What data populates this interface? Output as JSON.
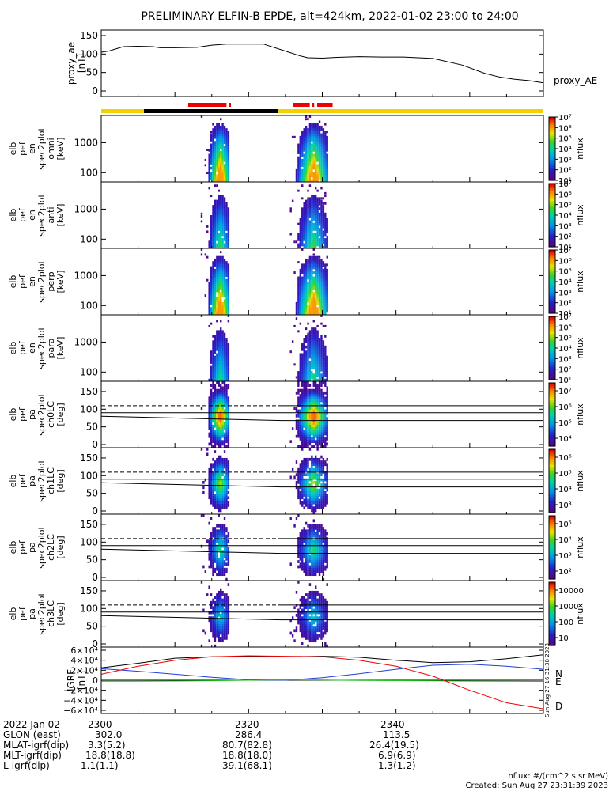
{
  "title": "PRELIMINARY ELFIN-B EPDE, alt=424km, 2022-01-02 23:00 to 24:00",
  "colors": {
    "red": "#ee0000",
    "black": "#000000",
    "yellow": "#f5d000",
    "blue": "#1f3fd6",
    "green": "#1fbf1f"
  },
  "chart_data": [
    {
      "id": "proxy_ae",
      "type": "line",
      "ylabel_lines": [
        "proxy_ae",
        "[nT]"
      ],
      "ylim": [
        0,
        150
      ],
      "yticks": [
        "0",
        "50",
        "100",
        "150"
      ],
      "legend": "proxy_AE",
      "x_minutes": [
        0,
        1,
        3,
        5,
        7,
        8,
        10,
        13,
        15,
        17,
        19,
        22,
        25,
        27,
        28,
        30,
        32,
        35,
        38,
        41,
        45,
        49,
        52,
        54,
        56,
        58,
        60
      ],
      "values": [
        105,
        108,
        120,
        121,
        120,
        117,
        117,
        118,
        124,
        127,
        127,
        127,
        108,
        95,
        90,
        89,
        91,
        93,
        92,
        92,
        88,
        70,
        48,
        38,
        32,
        28,
        22
      ]
    },
    {
      "id": "science_zones",
      "type": "bar",
      "legend_note": "science collection bars",
      "segments": [
        {
          "color": "red",
          "start_min": 11.8,
          "end_min": 17.0
        },
        {
          "color": "red",
          "start_min": 17.3,
          "end_min": 17.6
        },
        {
          "color": "red",
          "start_min": 26.0,
          "end_min": 28.3
        },
        {
          "color": "red",
          "start_min": 28.6,
          "end_min": 28.9
        },
        {
          "color": "red",
          "start_min": 29.3,
          "end_min": 31.4
        },
        {
          "color": "black",
          "start_min": 5.8,
          "end_min": 24.0
        }
      ]
    },
    {
      "id": "spec_omni",
      "type": "heatmap",
      "ylabel_lines": [
        "elb",
        "pef",
        "en",
        "spec2plot",
        "omni",
        "[keV]"
      ],
      "yticks": [
        "100",
        "1000"
      ],
      "cbar_label": "nflux",
      "cbar_ticks": [
        "10¹",
        "10²",
        "10³",
        "10⁴",
        "10⁵",
        "10⁶",
        "10⁷"
      ]
    },
    {
      "id": "spec_anti",
      "type": "heatmap",
      "ylabel_lines": [
        "elb",
        "pef",
        "en",
        "spec2plot",
        "anti",
        "[keV]"
      ],
      "yticks": [
        "100",
        "1000"
      ],
      "cbar_label": "nflux",
      "cbar_ticks": [
        "10¹",
        "10²",
        "10³",
        "10⁴",
        "10⁵",
        "10⁶",
        "10⁷"
      ]
    },
    {
      "id": "spec_perp",
      "type": "heatmap",
      "ylabel_lines": [
        "elb",
        "pef",
        "en",
        "spec2plot",
        "perp",
        "[keV]"
      ],
      "yticks": [
        "100",
        "1000"
      ],
      "cbar_label": "nflux",
      "cbar_ticks": [
        "10¹",
        "10²",
        "10³",
        "10⁴",
        "10⁵",
        "10⁶",
        "10⁷"
      ]
    },
    {
      "id": "spec_para",
      "type": "heatmap",
      "ylabel_lines": [
        "elb",
        "pef",
        "en",
        "spec2plot",
        "para",
        "[keV]"
      ],
      "yticks": [
        "100",
        "1000"
      ],
      "cbar_label": "nflux",
      "cbar_ticks": [
        "10¹",
        "10²",
        "10³",
        "10⁴",
        "10⁵",
        "10⁶",
        "10⁷"
      ]
    },
    {
      "id": "pa_ch0",
      "type": "heatmap",
      "ylabel_lines": [
        "elb",
        "pef",
        "pa",
        "spec2plot",
        "ch0LC",
        "[deg]"
      ],
      "yticks": [
        "0",
        "50",
        "100",
        "150"
      ],
      "cbar_label": "nflux",
      "cbar_ticks": [
        "10⁴",
        "10⁵",
        "10⁶",
        "10⁷"
      ]
    },
    {
      "id": "pa_ch1",
      "type": "heatmap",
      "ylabel_lines": [
        "elb",
        "pef",
        "pa",
        "spec2plot",
        "ch1LC",
        "[deg]"
      ],
      "yticks": [
        "0",
        "50",
        "100",
        "150"
      ],
      "cbar_label": "nflux",
      "cbar_ticks": [
        "10³",
        "10⁴",
        "10⁵",
        "10⁶"
      ]
    },
    {
      "id": "pa_ch2",
      "type": "heatmap",
      "ylabel_lines": [
        "elb",
        "pef",
        "pa",
        "spec2plot",
        "ch2LC",
        "[deg]"
      ],
      "yticks": [
        "0",
        "50",
        "100",
        "150"
      ],
      "cbar_label": "nflux",
      "cbar_ticks": [
        "10²",
        "10³",
        "10⁴",
        "10⁵"
      ]
    },
    {
      "id": "pa_ch3",
      "type": "heatmap",
      "ylabel_lines": [
        "elb",
        "pef",
        "pa",
        "spec2plot",
        "ch3LC",
        "[deg]"
      ],
      "yticks": [
        "0",
        "50",
        "100",
        "150"
      ],
      "cbar_label": "nflux",
      "cbar_ticks": [
        "10",
        "100",
        "1000",
        "10000"
      ]
    },
    {
      "id": "igrf",
      "type": "line",
      "ylabel_lines": [
        "IGRF",
        "[nT]"
      ],
      "ylim": [
        -60000,
        60000
      ],
      "yticks": [
        "−6×10⁴",
        "−4×10⁴",
        "−2×10⁴",
        "0",
        "2×10⁴",
        "4×10⁴",
        "6×10⁴"
      ],
      "legend": [
        "N",
        "E",
        "D"
      ],
      "stamp": "Sun Aug 27 16:31:38 2023",
      "x_minutes": [
        0,
        5,
        10,
        15,
        20,
        25,
        30,
        35,
        40,
        45,
        50,
        55,
        60
      ],
      "series": [
        {
          "name": "total",
          "color": "black",
          "values": [
            25000,
            34000,
            44000,
            47000,
            47500,
            47000,
            48000,
            46000,
            40000,
            35000,
            37000,
            43000,
            51000
          ]
        },
        {
          "name": "N",
          "color": "blue",
          "values": [
            23000,
            18000,
            12000,
            6000,
            1000,
            0,
            5000,
            13000,
            22000,
            30000,
            32000,
            28000,
            22000
          ]
        },
        {
          "name": "E",
          "color": "green",
          "values": [
            -2000,
            -2000,
            -1500,
            -1000,
            0,
            800,
            500,
            -300,
            -800,
            -1200,
            -1800,
            -2100,
            -2300
          ]
        },
        {
          "name": "D",
          "color": "red",
          "values": [
            12000,
            28000,
            40000,
            47000,
            49000,
            48000,
            47000,
            40000,
            28000,
            8000,
            -20000,
            -45000,
            -57000
          ]
        }
      ]
    }
  ],
  "x_tick_labels": [
    "2300",
    "2320",
    "2340"
  ],
  "footer": {
    "rows": [
      {
        "label": "2022 Jan 02",
        "v1": "2300",
        "v2": "2320",
        "v3": "2340"
      },
      {
        "label": "GLON (east)",
        "v1": "302.0",
        "v2": "286.4",
        "v3": "113.5"
      },
      {
        "label": "MLAT-igrf(dip)",
        "v1": "3.3(5.2)",
        "v2": "80.7(82.8)",
        "v3": "26.4(19.5)"
      },
      {
        "label": "MLT-igrf(dip)",
        "v1": "18.8(18.8)",
        "v2": "18.8(18.0)",
        "v3": "6.9(6.9)"
      },
      {
        "label": "L-igrf(dip)",
        "v1": "1.1(1.1)",
        "v2": "39.1(68.1)",
        "v3": "1.3(1.2)"
      }
    ],
    "units": "nflux: #/(cm^2 s sr MeV)",
    "created": "Created: Sun Aug 27 23:31:39 2023"
  }
}
